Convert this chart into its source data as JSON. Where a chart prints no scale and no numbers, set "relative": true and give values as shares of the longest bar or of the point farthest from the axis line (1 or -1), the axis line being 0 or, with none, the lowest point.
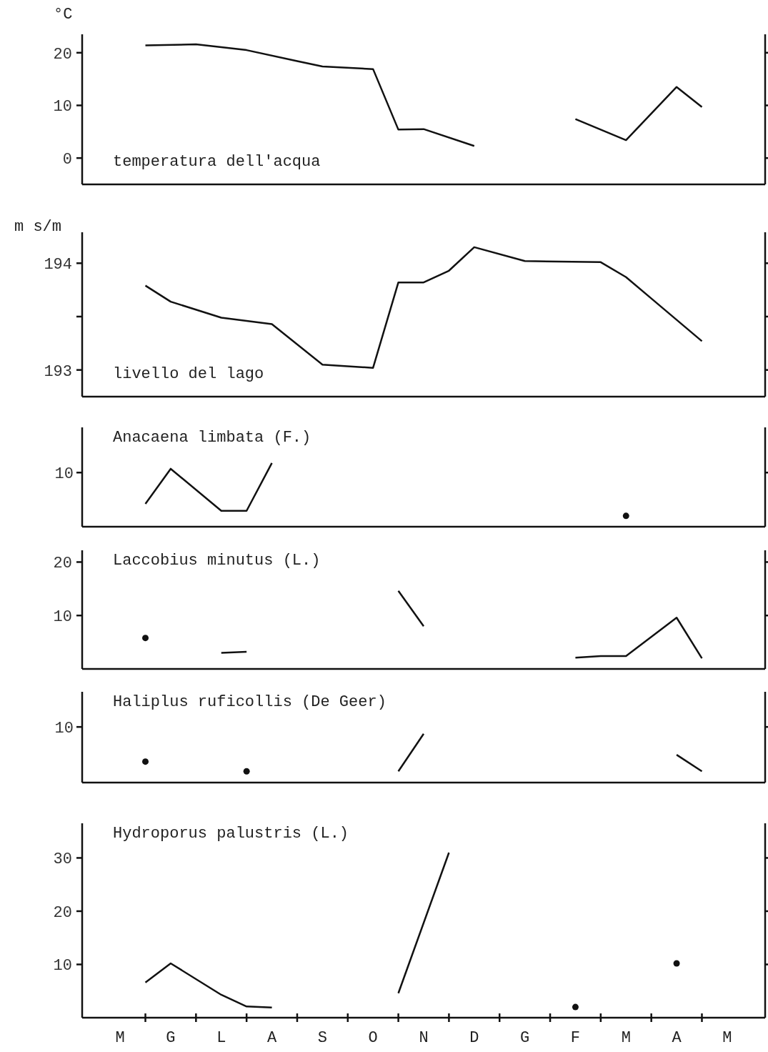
{
  "chart_data": [
    {
      "type": "line",
      "title": "temperatura dell'acqua",
      "ylabel": "°C",
      "ylim": [
        -5,
        23.5
      ],
      "yticks": [
        0,
        10,
        20
      ],
      "tick_labels": "y",
      "categories": [
        null,
        null,
        null,
        null,
        null,
        null,
        null,
        null,
        null,
        null,
        null,
        null,
        null,
        null,
        null,
        null,
        null,
        null,
        null,
        null,
        null,
        null,
        null,
        null,
        null,
        null,
        null
      ],
      "series": [
        {
          "color": "#111111",
          "values": [
            null,
            null,
            21.4,
            null,
            21.6,
            null,
            20.5,
            null,
            18.4,
            17.4,
            null,
            16.9,
            5.4,
            5.5,
            null,
            2.3,
            null,
            null,
            null,
            null,
            null,
            null,
            null,
            null,
            null,
            null,
            null
          ]
        },
        {
          "color": "#111111",
          "values": [
            null,
            null,
            null,
            null,
            null,
            null,
            null,
            null,
            null,
            null,
            null,
            null,
            null,
            null,
            null,
            null,
            null,
            null,
            null,
            7.4,
            null,
            3.4,
            null,
            13.5,
            9.7,
            null,
            null
          ]
        }
      ]
    },
    {
      "type": "line",
      "title": "livello del lago",
      "ylabel": "m s/m",
      "ylim": [
        192.75,
        194.29
      ],
      "yticks": [
        193,
        {
          "value": 193.5,
          "label": null
        },
        194
      ],
      "tick_labels": "y",
      "categories": [
        null,
        null,
        null,
        null,
        null,
        null,
        null,
        null,
        null,
        null,
        null,
        null,
        null,
        null,
        null,
        null,
        null,
        null,
        null,
        null,
        null,
        null,
        null,
        null,
        null,
        null,
        null
      ],
      "series": [
        {
          "color": "#111111",
          "values": [
            null,
            null,
            193.79,
            193.64,
            null,
            193.49,
            null,
            193.43,
            null,
            193.05,
            null,
            193.02,
            193.82,
            193.82,
            193.93,
            194.15,
            null,
            194.02,
            null,
            null,
            194.01,
            193.87,
            193.67,
            null,
            193.27,
            null,
            null
          ]
        }
      ]
    },
    {
      "type": "line",
      "title": "Anacaena limbata (F.)",
      "relative": true,
      "tick_labels": "y",
      "annotations": [
        "10"
      ],
      "categories": [
        null,
        null,
        null,
        null,
        null,
        null,
        null,
        null,
        null,
        null,
        null,
        null,
        null,
        null,
        null,
        null,
        null,
        null,
        null,
        null,
        null,
        null,
        null,
        null,
        null,
        null,
        null
      ],
      "series": [
        {
          "color": "#111111",
          "values": [
            null,
            null,
            0.36,
            0.91,
            null,
            0.25,
            0.25,
            1,
            null,
            null,
            null,
            null,
            null,
            null,
            null,
            null,
            null,
            null,
            null,
            null,
            null,
            null,
            null,
            null,
            null,
            null,
            null
          ]
        },
        {
          "type": "scatter",
          "color": "#111111",
          "values": [
            null,
            null,
            null,
            null,
            null,
            null,
            null,
            null,
            null,
            null,
            null,
            null,
            null,
            null,
            null,
            null,
            null,
            null,
            null,
            null,
            null,
            0.17,
            null,
            null,
            null,
            null,
            null
          ]
        }
      ]
    },
    {
      "type": "line",
      "title": "Laccobius minutus (L.)",
      "ylim": [
        0,
        22.2
      ],
      "yticks": [
        10,
        20
      ],
      "tick_labels": "y",
      "categories": [
        null,
        null,
        null,
        null,
        null,
        null,
        null,
        null,
        null,
        null,
        null,
        null,
        null,
        null,
        null,
        null,
        null,
        null,
        null,
        null,
        null,
        null,
        null,
        null,
        null,
        null,
        null
      ],
      "series": [
        {
          "type": "scatter",
          "color": "#111111",
          "values": [
            null,
            null,
            5.8,
            null,
            null,
            null,
            null,
            null,
            null,
            null,
            null,
            null,
            null,
            null,
            null,
            null,
            null,
            null,
            null,
            null,
            null,
            null,
            null,
            null,
            null,
            null,
            null
          ]
        },
        {
          "color": "#111111",
          "values": [
            null,
            null,
            null,
            null,
            null,
            3.0,
            3.2,
            null,
            null,
            null,
            null,
            null,
            null,
            null,
            null,
            null,
            null,
            null,
            null,
            null,
            null,
            null,
            null,
            null,
            null,
            null,
            null
          ]
        },
        {
          "color": "#111111",
          "values": [
            null,
            null,
            null,
            null,
            null,
            null,
            null,
            null,
            null,
            null,
            null,
            null,
            14.6,
            8.0,
            null,
            null,
            null,
            null,
            null,
            null,
            null,
            null,
            null,
            null,
            null,
            null,
            null
          ]
        },
        {
          "color": "#111111",
          "values": [
            null,
            null,
            null,
            null,
            null,
            null,
            null,
            null,
            null,
            null,
            null,
            null,
            null,
            null,
            null,
            null,
            null,
            null,
            null,
            2.1,
            2.4,
            2.4,
            null,
            9.6,
            2.0,
            null,
            null
          ]
        }
      ]
    },
    {
      "type": "line",
      "title": "Haliplus ruficollis (De Geer)",
      "relative": true,
      "tick_labels": "y",
      "annotations": [
        "10"
      ],
      "categories": [
        null,
        null,
        null,
        null,
        null,
        null,
        null,
        null,
        null,
        null,
        null,
        null,
        null,
        null,
        null,
        null,
        null,
        null,
        null,
        null,
        null,
        null,
        null,
        null,
        null,
        null,
        null
      ],
      "series": [
        {
          "type": "scatter",
          "color": "#111111",
          "values": [
            null,
            null,
            0.43,
            null,
            null,
            null,
            0.23,
            null,
            null,
            null,
            null,
            null,
            null,
            null,
            null,
            null,
            null,
            null,
            null,
            null,
            null,
            null,
            null,
            null,
            null,
            null,
            null
          ]
        },
        {
          "color": "#111111",
          "values": [
            null,
            null,
            null,
            null,
            null,
            null,
            null,
            null,
            null,
            null,
            null,
            null,
            0.23,
            1,
            null,
            null,
            null,
            null,
            null,
            null,
            null,
            null,
            null,
            null,
            null,
            null,
            null
          ]
        },
        {
          "color": "#111111",
          "values": [
            null,
            null,
            null,
            null,
            null,
            null,
            null,
            null,
            null,
            null,
            null,
            null,
            null,
            null,
            null,
            null,
            null,
            null,
            null,
            null,
            null,
            null,
            null,
            0.57,
            0.23,
            null,
            null
          ]
        }
      ]
    },
    {
      "type": "line",
      "title": "Hydroporus palustris (L.)",
      "ylim": [
        0,
        36.5
      ],
      "yticks": [
        10,
        20,
        30
      ],
      "categories": [
        null,
        "M",
        null,
        "G",
        null,
        "L",
        null,
        "A",
        null,
        "S",
        null,
        "O",
        null,
        "N",
        null,
        "D",
        null,
        "G",
        null,
        "F",
        null,
        "M",
        null,
        "A",
        null,
        "M",
        null
      ],
      "series": [
        {
          "color": "#111111",
          "values": [
            null,
            null,
            6.6,
            10.2,
            null,
            4.3,
            2.1,
            1.9,
            null,
            null,
            null,
            null,
            null,
            null,
            null,
            null,
            null,
            null,
            null,
            null,
            null,
            null,
            null,
            null,
            null,
            null,
            null
          ]
        },
        {
          "color": "#111111",
          "values": [
            null,
            null,
            null,
            null,
            null,
            null,
            null,
            null,
            null,
            null,
            null,
            null,
            4.6,
            null,
            31.0,
            null,
            null,
            null,
            null,
            null,
            null,
            null,
            null,
            null,
            null,
            null,
            null
          ]
        },
        {
          "type": "scatter",
          "color": "#111111",
          "values": [
            null,
            null,
            null,
            null,
            null,
            null,
            null,
            null,
            null,
            null,
            null,
            null,
            null,
            null,
            null,
            null,
            null,
            null,
            null,
            2.0,
            null,
            null,
            null,
            10.2,
            null,
            null,
            null
          ]
        }
      ]
    }
  ]
}
